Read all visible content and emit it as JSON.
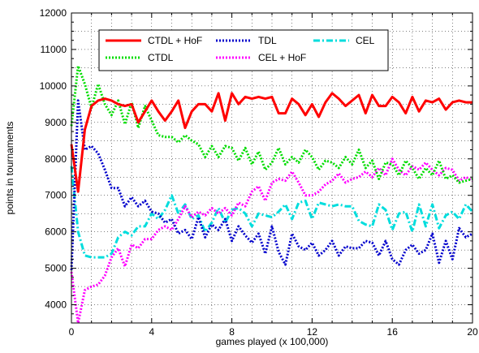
{
  "chart_data": {
    "type": "line",
    "title": "",
    "xlabel": "games played (x 100,000)",
    "ylabel": "points in tournaments",
    "xlim": [
      0,
      20
    ],
    "ylim": [
      3500,
      12000
    ],
    "xticks": [
      0,
      4,
      8,
      12,
      16,
      20
    ],
    "xtick_labels": [
      "0",
      "4",
      "8",
      "12",
      "16",
      "20"
    ],
    "yticks": [
      4000,
      5000,
      6000,
      7000,
      8000,
      9000,
      10000,
      11000,
      12000
    ],
    "ytick_labels": [
      "4000",
      "5000",
      "6000",
      "7000",
      "8000",
      "9000",
      "10000",
      "11000",
      "12000"
    ],
    "grid": true,
    "legend_placement": "top",
    "series": [
      {
        "name": "CTDL + HoF",
        "color": "#ff0000",
        "dash": "solid",
        "x": [
          0,
          0.33,
          0.67,
          1,
          1.33,
          1.67,
          2,
          2.33,
          2.67,
          3,
          3.33,
          3.67,
          4,
          4.33,
          4.67,
          5,
          5.33,
          5.67,
          6,
          6.33,
          6.67,
          7,
          7.33,
          7.67,
          8,
          8.33,
          8.67,
          9,
          9.33,
          9.67,
          10,
          10.33,
          10.67,
          11,
          11.33,
          11.67,
          12,
          12.33,
          12.67,
          13,
          13.33,
          13.67,
          14,
          14.33,
          14.67,
          15,
          15.33,
          15.67,
          16,
          16.33,
          16.67,
          17,
          17.33,
          17.67,
          18,
          18.33,
          18.67,
          19,
          19.33,
          19.67,
          20
        ],
        "y": [
          8400,
          7100,
          8800,
          9450,
          9600,
          9650,
          9600,
          9500,
          9450,
          9500,
          9000,
          9300,
          9600,
          9300,
          9050,
          9300,
          9600,
          8850,
          9300,
          9500,
          9500,
          9300,
          9800,
          9050,
          9800,
          9500,
          9700,
          9650,
          9700,
          9650,
          9700,
          9250,
          9250,
          9650,
          9500,
          9200,
          9500,
          9150,
          9550,
          9800,
          9650,
          9450,
          9600,
          9750,
          9250,
          9750,
          9450,
          9450,
          9700,
          9550,
          9250,
          9700,
          9300,
          9600,
          9550,
          9650,
          9350,
          9550,
          9600,
          9550,
          9550
        ]
      },
      {
        "name": "CTDL",
        "color": "#00dd00",
        "dash": "dotted",
        "x": [
          0,
          0.33,
          0.67,
          1,
          1.33,
          1.67,
          2,
          2.33,
          2.67,
          3,
          3.33,
          3.67,
          4,
          4.33,
          4.67,
          5,
          5.33,
          5.67,
          6,
          6.33,
          6.67,
          7,
          7.33,
          7.67,
          8,
          8.33,
          8.67,
          9,
          9.33,
          9.67,
          10,
          10.33,
          10.67,
          11,
          11.33,
          11.67,
          12,
          12.33,
          12.67,
          13,
          13.33,
          13.67,
          14,
          14.33,
          14.67,
          15,
          15.33,
          15.67,
          16,
          16.33,
          16.67,
          17,
          17.33,
          17.67,
          18,
          18.33,
          18.67,
          19,
          19.33,
          19.67,
          20
        ],
        "y": [
          8900,
          10550,
          10050,
          9400,
          10050,
          9500,
          9200,
          9600,
          8950,
          9550,
          8850,
          9450,
          9050,
          8650,
          8600,
          8600,
          8450,
          8650,
          8500,
          8400,
          8050,
          8350,
          8050,
          8350,
          8300,
          7950,
          8300,
          7850,
          8200,
          7700,
          7900,
          8300,
          7850,
          8050,
          7900,
          8250,
          8050,
          7700,
          7950,
          7900,
          7750,
          8050,
          7850,
          8250,
          7750,
          7950,
          7450,
          7900,
          7850,
          7550,
          7950,
          7750,
          7450,
          7750,
          7550,
          7950,
          7450,
          7550,
          7350,
          7400,
          7450
        ]
      },
      {
        "name": "TDL",
        "color": "#0000cc",
        "dash": "dotted",
        "x": [
          0,
          0.33,
          0.67,
          1,
          1.33,
          1.67,
          2,
          2.33,
          2.67,
          3,
          3.33,
          3.67,
          4,
          4.33,
          4.67,
          5,
          5.33,
          5.67,
          6,
          6.33,
          6.67,
          7,
          7.33,
          7.67,
          8,
          8.33,
          8.67,
          9,
          9.33,
          9.67,
          10,
          10.33,
          10.67,
          11,
          11.33,
          11.67,
          12,
          12.33,
          12.67,
          13,
          13.33,
          13.67,
          14,
          14.33,
          14.67,
          15,
          15.33,
          15.67,
          16,
          16.33,
          16.67,
          17,
          17.33,
          17.67,
          18,
          18.33,
          18.67,
          19,
          19.33,
          19.67,
          20
        ],
        "y": [
          4950,
          9600,
          8250,
          8350,
          8150,
          7700,
          7200,
          7200,
          6700,
          6950,
          6700,
          6850,
          6550,
          6500,
          6250,
          6350,
          5950,
          6050,
          5800,
          6400,
          5850,
          6200,
          6050,
          6350,
          5750,
          6150,
          5900,
          5700,
          5950,
          5400,
          6150,
          5450,
          5100,
          5950,
          5600,
          5500,
          5700,
          5350,
          5500,
          5750,
          5350,
          5600,
          5550,
          5550,
          5750,
          5700,
          5350,
          5750,
          5250,
          5100,
          5500,
          5650,
          5400,
          5500,
          5950,
          5150,
          5750,
          5250,
          6100,
          5850,
          5950
        ]
      },
      {
        "name": "CEL + HoF",
        "color": "#ff00ff",
        "dash": "dotted",
        "x": [
          0,
          0.33,
          0.67,
          1,
          1.33,
          1.67,
          2,
          2.33,
          2.67,
          3,
          3.33,
          3.67,
          4,
          4.33,
          4.67,
          5,
          5.33,
          5.67,
          6,
          6.33,
          6.67,
          7,
          7.33,
          7.67,
          8,
          8.33,
          8.67,
          9,
          9.33,
          9.67,
          10,
          10.33,
          10.67,
          11,
          11.33,
          11.67,
          12,
          12.33,
          12.67,
          13,
          13.33,
          13.67,
          14,
          14.33,
          14.67,
          15,
          15.33,
          15.67,
          16,
          16.33,
          16.67,
          17,
          17.33,
          17.67,
          18,
          18.33,
          18.67,
          19,
          19.33,
          19.67,
          20
        ],
        "y": [
          4900,
          3500,
          4400,
          4500,
          4550,
          4800,
          5300,
          5550,
          5050,
          5650,
          5550,
          5800,
          5800,
          6050,
          6150,
          6050,
          6350,
          6700,
          6400,
          6550,
          6450,
          6650,
          6500,
          6650,
          6450,
          6800,
          6700,
          7100,
          7250,
          6850,
          7350,
          7450,
          7400,
          7650,
          7350,
          7000,
          7000,
          7100,
          7300,
          7400,
          7600,
          7350,
          7450,
          7500,
          7650,
          7500,
          7750,
          7550,
          8000,
          7700,
          7550,
          7800,
          7700,
          7900,
          7700,
          7550,
          7750,
          7700,
          7400,
          7500,
          7400
        ]
      },
      {
        "name": "CEL",
        "color": "#00dddd",
        "dash": "dashdot",
        "x": [
          0,
          0.33,
          0.67,
          1,
          1.33,
          1.67,
          2,
          2.33,
          2.67,
          3,
          3.33,
          3.67,
          4,
          4.33,
          4.67,
          5,
          5.33,
          5.67,
          6,
          6.33,
          6.67,
          7,
          7.33,
          7.67,
          8,
          8.33,
          8.67,
          9,
          9.33,
          9.67,
          10,
          10.33,
          10.67,
          11,
          11.33,
          11.67,
          12,
          12.33,
          12.67,
          13,
          13.33,
          13.67,
          14,
          14.33,
          14.67,
          15,
          15.33,
          15.67,
          16,
          16.33,
          16.67,
          17,
          17.33,
          17.67,
          18,
          18.33,
          18.67,
          19,
          19.33,
          19.67,
          20
        ],
        "y": [
          7800,
          6000,
          5350,
          5300,
          5300,
          5300,
          5400,
          5850,
          6000,
          5900,
          6150,
          6150,
          6500,
          6350,
          6600,
          7000,
          6500,
          6750,
          6350,
          6450,
          6000,
          6250,
          6650,
          6250,
          6600,
          6650,
          6500,
          6150,
          6500,
          6450,
          6400,
          6550,
          6750,
          6350,
          6800,
          6850,
          6350,
          6800,
          6750,
          6700,
          6750,
          6700,
          6700,
          6300,
          6200,
          6150,
          6750,
          6600,
          6050,
          6500,
          6550,
          6000,
          6750,
          6150,
          6750,
          6100,
          6450,
          6550,
          6350,
          6750,
          6550
        ]
      }
    ]
  }
}
